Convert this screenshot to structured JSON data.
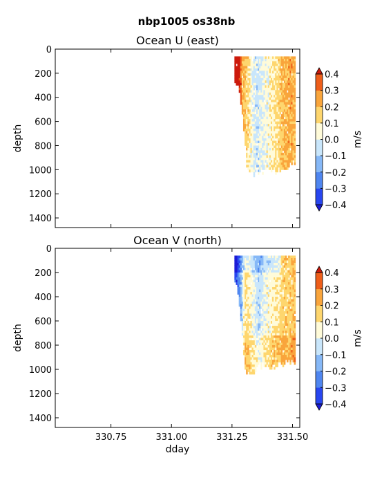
{
  "figure": {
    "suptitle": "nbp1005 os38nb"
  },
  "chart_data": [
    {
      "type": "heatmap",
      "title": "Ocean U (east)",
      "xlabel": "",
      "ylabel": "depth",
      "xlim": [
        330.52,
        331.53
      ],
      "ylim": [
        1480,
        0
      ],
      "x_ticks": [
        330.75,
        331.0,
        331.25,
        331.5
      ],
      "x_tick_labels": [],
      "y_ticks": [
        0,
        200,
        400,
        600,
        800,
        1000,
        1200,
        1400
      ],
      "y_tick_labels": [
        "0",
        "200",
        "400",
        "600",
        "800",
        "1000",
        "1200",
        "1400"
      ],
      "colorbar": {
        "label": "m/s",
        "levels": [
          -0.4,
          -0.3,
          -0.2,
          -0.1,
          0.0,
          0.1,
          0.2,
          0.3,
          0.4
        ],
        "tick_labels": [
          "−0.4",
          "−0.3",
          "−0.2",
          "−0.1",
          "0.0",
          "0.1",
          "0.2",
          "0.3",
          "0.4"
        ],
        "colors": [
          "#2846f0",
          "#4f86f0",
          "#86b8f7",
          "#c9e6fb",
          "#fffbd9",
          "#fed66e",
          "#f9a53c",
          "#ee5e1a"
        ],
        "under_color": "#1c1cd6",
        "over_color": "#cc1a0c"
      },
      "data_extent": {
        "x": [
          331.26,
          331.51
        ],
        "depth": [
          60,
          1030
        ]
      },
      "profiles": [
        {
          "x": 331.275,
          "depth_max": 300,
          "value": 0.5
        },
        {
          "x": 331.29,
          "depth_max": 520,
          "value": 0.22
        },
        {
          "x": 331.31,
          "depth_max": 1000,
          "value": 0.15
        },
        {
          "x": 331.33,
          "depth_max": 1030,
          "value": 0.02
        },
        {
          "x": 331.35,
          "depth_max": 1000,
          "value": -0.05
        },
        {
          "x": 331.37,
          "depth_max": 990,
          "value": 0.0
        },
        {
          "x": 331.39,
          "depth_max": 1000,
          "value": 0.03
        },
        {
          "x": 331.41,
          "depth_max": 990,
          "value": 0.08
        },
        {
          "x": 331.43,
          "depth_max": 1000,
          "value": 0.1
        },
        {
          "x": 331.45,
          "depth_max": 980,
          "value": 0.18
        },
        {
          "x": 331.47,
          "depth_max": 990,
          "value": 0.2
        },
        {
          "x": 331.49,
          "depth_max": 930,
          "value": 0.22
        },
        {
          "x": 331.505,
          "depth_max": 930,
          "value": 0.2
        }
      ]
    },
    {
      "type": "heatmap",
      "title": "Ocean V (north)",
      "xlabel": "dday",
      "ylabel": "depth",
      "xlim": [
        330.52,
        331.53
      ],
      "ylim": [
        1480,
        0
      ],
      "x_ticks": [
        330.75,
        331.0,
        331.25,
        331.5
      ],
      "x_tick_labels": [
        "330.75",
        "331.00",
        "331.25",
        "331.50"
      ],
      "y_ticks": [
        0,
        200,
        400,
        600,
        800,
        1000,
        1200,
        1400
      ],
      "y_tick_labels": [
        "0",
        "200",
        "400",
        "600",
        "800",
        "1000",
        "1200",
        "1400"
      ],
      "colorbar": {
        "label": "m/s",
        "levels": [
          -0.4,
          -0.3,
          -0.2,
          -0.1,
          0.0,
          0.1,
          0.2,
          0.3,
          0.4
        ],
        "tick_labels": [
          "−0.4",
          "−0.3",
          "−0.2",
          "−0.1",
          "0.0",
          "0.1",
          "0.2",
          "0.3",
          "0.4"
        ],
        "colors": [
          "#2846f0",
          "#4f86f0",
          "#86b8f7",
          "#c9e6fb",
          "#fffbd9",
          "#fed66e",
          "#f9a53c",
          "#ee5e1a"
        ],
        "under_color": "#1c1cd6",
        "over_color": "#cc1a0c"
      },
      "data_extent": {
        "x": [
          331.26,
          331.51
        ],
        "depth": [
          60,
          1040
        ]
      },
      "profiles": [
        {
          "x": 331.265,
          "depth_max": 260,
          "value": -0.35
        },
        {
          "x": 331.28,
          "depth_max": 500,
          "value": -0.2
        },
        {
          "x": 331.3,
          "depth_max": 980,
          "value": 0.12
        },
        {
          "x": 331.32,
          "depth_max": 1040,
          "value": 0.08
        },
        {
          "x": 331.34,
          "depth_max": 1000,
          "value": 0.0
        },
        {
          "x": 331.36,
          "depth_max": 960,
          "value": -0.08
        },
        {
          "x": 331.38,
          "depth_max": 960,
          "value": 0.02
        },
        {
          "x": 331.4,
          "depth_max": 960,
          "value": 0.05
        },
        {
          "x": 331.42,
          "depth_max": 980,
          "value": 0.08
        },
        {
          "x": 331.44,
          "depth_max": 960,
          "value": 0.1
        },
        {
          "x": 331.46,
          "depth_max": 960,
          "value": 0.15
        },
        {
          "x": 331.48,
          "depth_max": 930,
          "value": 0.15
        },
        {
          "x": 331.5,
          "depth_max": 930,
          "value": 0.18
        }
      ]
    }
  ]
}
